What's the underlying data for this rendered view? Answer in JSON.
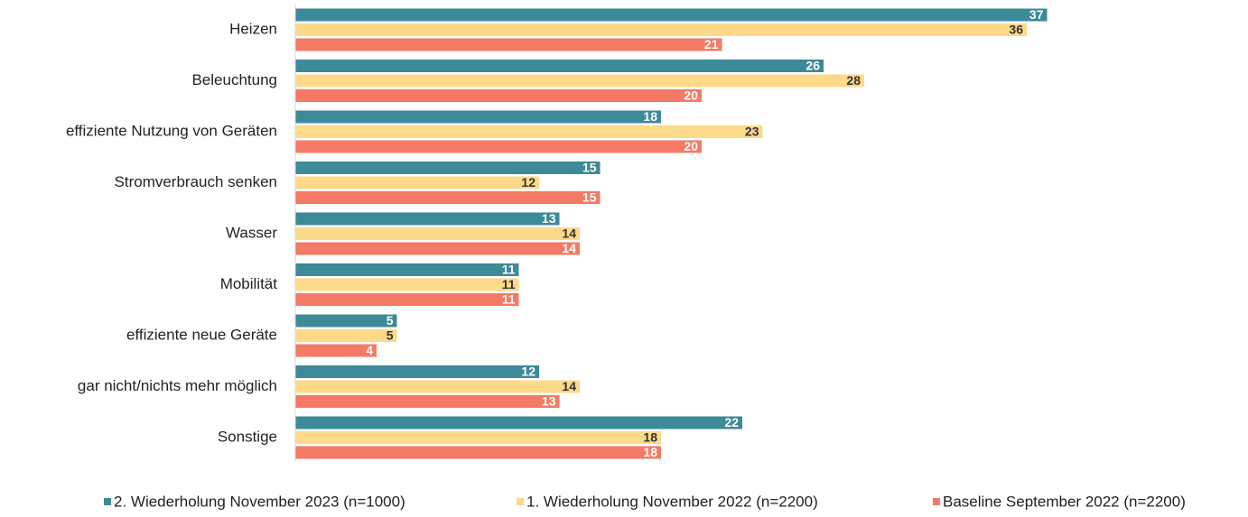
{
  "chart_data": {
    "type": "hbar",
    "categories": [
      "Heizen",
      "Beleuchtung",
      "effiziente Nutzung von Geräten",
      "Stromverbrauch senken",
      "Wasser",
      "Mobilität",
      "effiziente neue Geräte",
      "gar nicht/nichts mehr möglich",
      "Sonstige"
    ],
    "series": [
      {
        "name": "2. Wiederholung November 2023 (n=1000)",
        "color": "#3d8a99",
        "label_color": "#ffffff",
        "values": [
          37,
          26,
          18,
          15,
          13,
          11,
          5,
          12,
          22
        ]
      },
      {
        "name": "1. Wiederholung November 2022 (n=2200)",
        "color": "#fdd98a",
        "label_color": "#333333",
        "values": [
          36,
          28,
          23,
          12,
          14,
          11,
          5,
          14,
          18
        ]
      },
      {
        "name": "Baseline September 2022 (n=2200)",
        "color": "#f47a66",
        "label_color": "#ffffff",
        "values": [
          21,
          20,
          20,
          15,
          14,
          11,
          4,
          13,
          18
        ]
      }
    ],
    "xlim": [
      0,
      40
    ],
    "legend": "bottom"
  }
}
